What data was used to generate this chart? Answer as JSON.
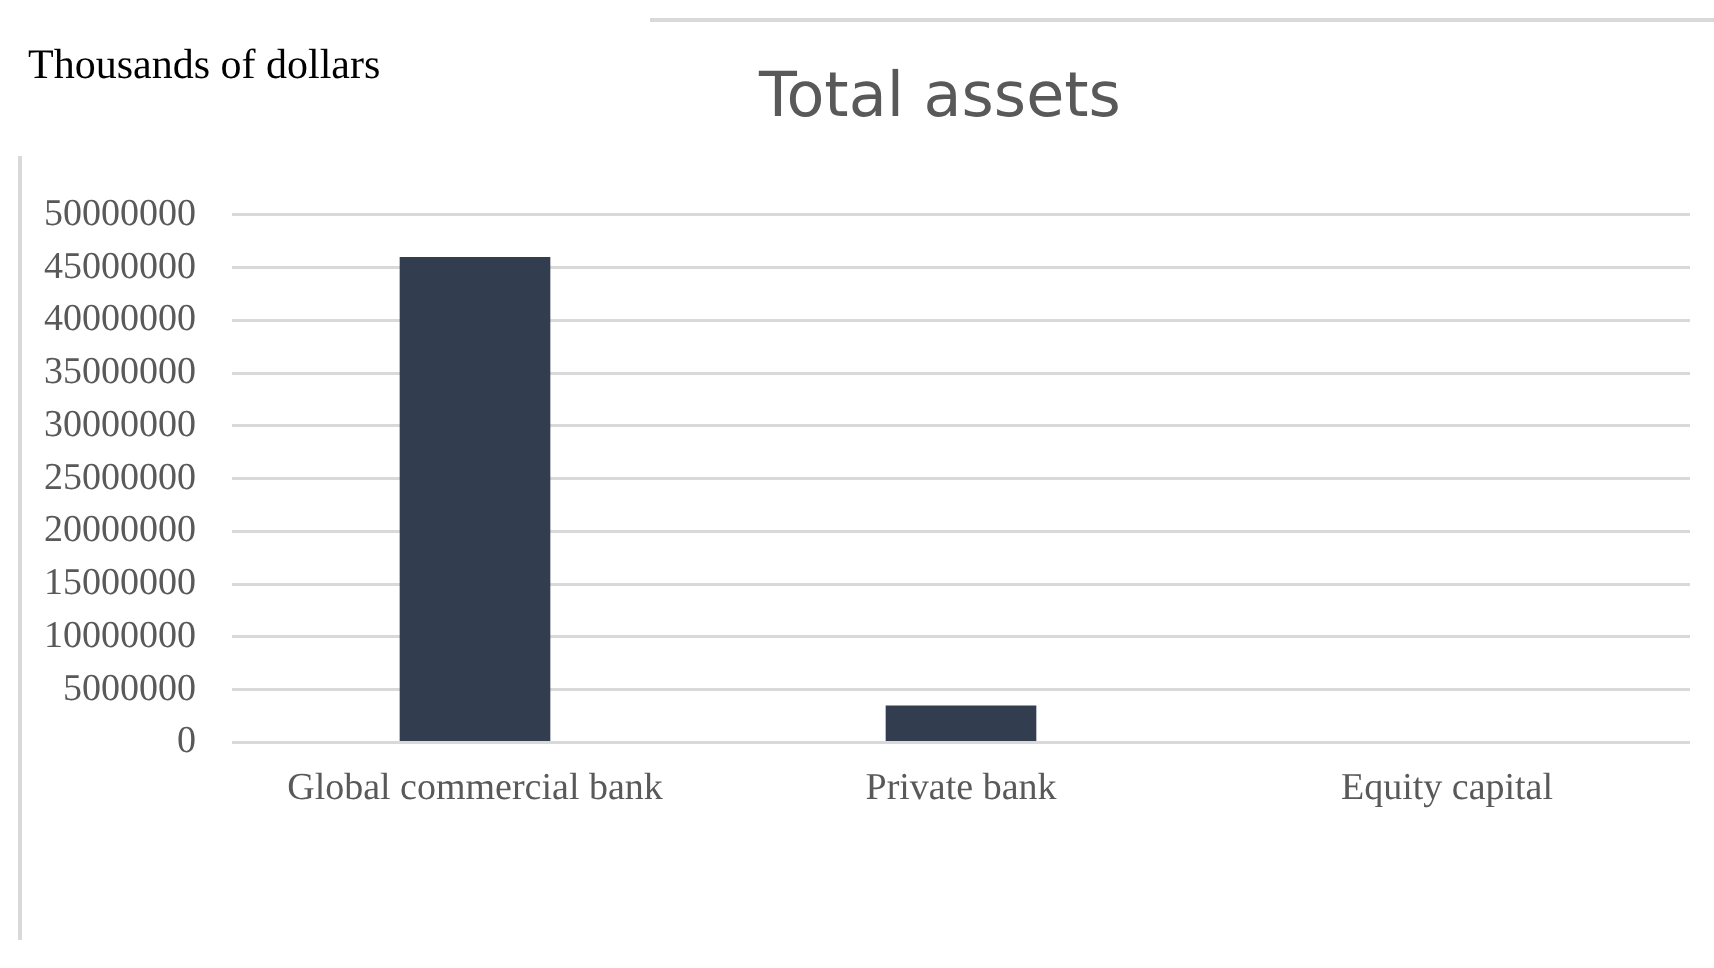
{
  "chart_data": {
    "type": "bar",
    "title": "Total assets",
    "ylabel": "Thousands of dollars",
    "categories": [
      "Global commercial bank",
      "Private bank",
      "Equity capital"
    ],
    "values": [
      46000000,
      3500000,
      0
    ],
    "color": "#323d4f",
    "ylim": [
      0,
      50000000
    ],
    "yticks": [
      0,
      5000000,
      10000000,
      15000000,
      20000000,
      25000000,
      30000000,
      35000000,
      40000000,
      45000000,
      50000000
    ],
    "grid": "y",
    "legend": false
  }
}
